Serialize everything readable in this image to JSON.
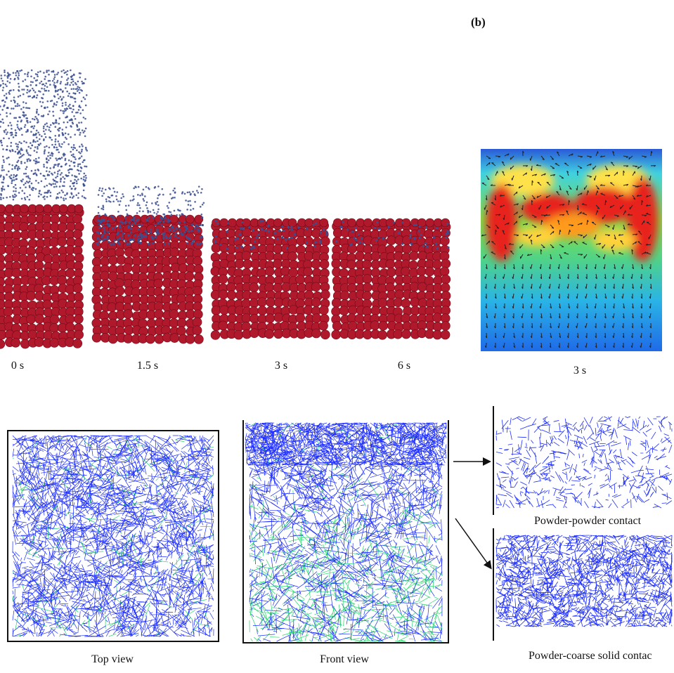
{
  "panel_b": {
    "tag": "(b)",
    "time_label": "3 s"
  },
  "snapshots": [
    {
      "time": "0 s"
    },
    {
      "time": "1.5 s"
    },
    {
      "time": "3 s"
    },
    {
      "time": "6 s"
    }
  ],
  "network_views": {
    "top_view": "Top view",
    "front_view": "Front view",
    "powder_powder": "Powder-powder contact",
    "powder_coarse": "Powder-coarse solid contac"
  },
  "colors": {
    "coarse_particle": "#b0182c",
    "fine_particle": "#3a4f8f",
    "contact_blue": "#1c2cff",
    "contact_green": "#26d86a"
  }
}
